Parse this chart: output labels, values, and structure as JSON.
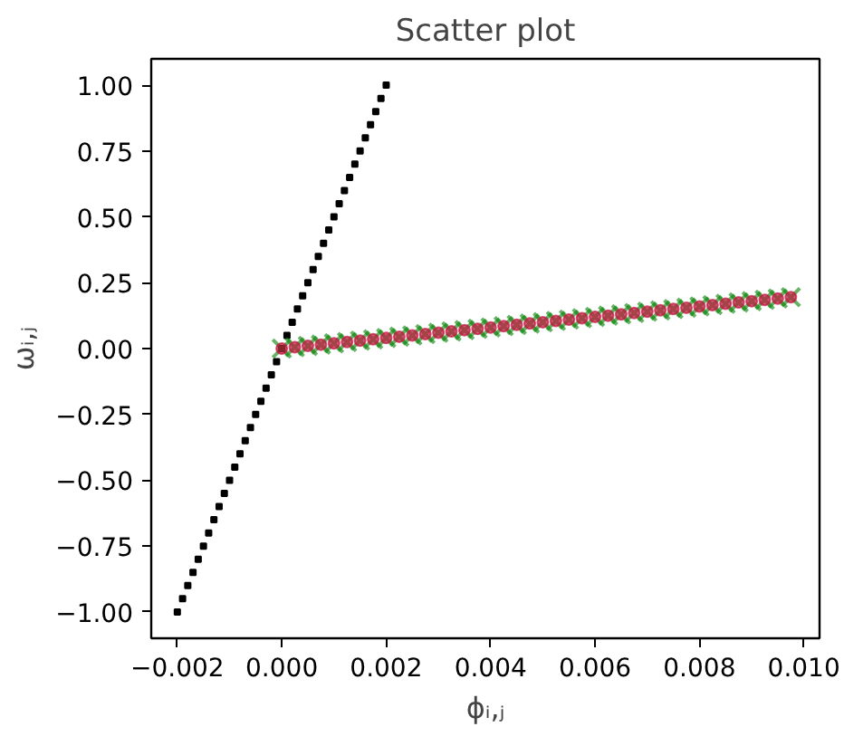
{
  "chart_data": {
    "type": "scatter",
    "title": "Scatter plot",
    "xlabel": "ϕᵢ,ⱼ",
    "ylabel": "ωᵢ,ⱼ",
    "xlim": [
      -0.0025,
      0.0103
    ],
    "ylim": [
      -1.1,
      1.1
    ],
    "xticks": [
      {
        "value": -0.002,
        "label": "−0.002"
      },
      {
        "value": 0,
        "label": "0.000"
      },
      {
        "value": 0.002,
        "label": "0.002"
      },
      {
        "value": 0.004,
        "label": "0.004"
      },
      {
        "value": 0.006,
        "label": "0.006"
      },
      {
        "value": 0.008,
        "label": "0.008"
      },
      {
        "value": 0.01,
        "label": "0.010"
      }
    ],
    "yticks": [
      {
        "value": -1,
        "label": "−1.00"
      },
      {
        "value": -0.75,
        "label": "−0.75"
      },
      {
        "value": -0.5,
        "label": "−0.50"
      },
      {
        "value": -0.25,
        "label": "−0.25"
      },
      {
        "value": 0,
        "label": "0.00"
      },
      {
        "value": 0.25,
        "label": "0.25"
      },
      {
        "value": 0.5,
        "label": "0.50"
      },
      {
        "value": 0.75,
        "label": "0.75"
      },
      {
        "value": 1,
        "label": "1.00"
      }
    ],
    "grid": false,
    "series": [
      {
        "color": "#000000",
        "marker": "square",
        "x": [
          -0.002,
          -0.0019,
          -0.0018,
          -0.0017,
          -0.0016,
          -0.0015,
          -0.0014,
          -0.0013,
          -0.0012,
          -0.0011,
          -0.001,
          -0.0009,
          -0.0008,
          -0.0007,
          -0.0006,
          -0.0005,
          -0.0004,
          -0.0003,
          -0.0002,
          -0.0001,
          0,
          0.0001,
          0.0002,
          0.0003,
          0.0004,
          0.0005,
          0.0006,
          0.0007,
          0.0008,
          0.0009,
          0.001,
          0.0011,
          0.0012,
          0.0013,
          0.0014,
          0.0015,
          0.0016,
          0.0017,
          0.0018,
          0.0019,
          0.002
        ],
        "values": [
          -1,
          -0.95,
          -0.9,
          -0.85,
          -0.8,
          -0.75,
          -0.7,
          -0.65,
          -0.6,
          -0.55,
          -0.5,
          -0.45,
          -0.4,
          -0.35,
          -0.3,
          -0.25,
          -0.2,
          -0.15,
          -0.1,
          -0.05,
          0,
          0.05,
          0.1,
          0.15,
          0.2,
          0.25,
          0.3,
          0.35,
          0.4,
          0.45,
          0.5,
          0.55,
          0.6,
          0.65,
          0.7,
          0.75,
          0.8,
          0.85,
          0.9,
          0.95,
          1
        ]
      },
      {
        "color": "#008000",
        "marker": "cross",
        "x": [
          0,
          0.00025,
          0.0005,
          0.00075,
          0.001,
          0.00125,
          0.0015,
          0.00175,
          0.002,
          0.00225,
          0.0025,
          0.00275,
          0.003,
          0.00325,
          0.0035,
          0.00375,
          0.004,
          0.00425,
          0.0045,
          0.00475,
          0.005,
          0.00525,
          0.0055,
          0.00575,
          0.006,
          0.00625,
          0.0065,
          0.00675,
          0.007,
          0.00725,
          0.0075,
          0.00775,
          0.008,
          0.00825,
          0.0085,
          0.00875,
          0.009,
          0.00925,
          0.0095,
          0.00975
        ],
        "values": [
          0,
          0.005,
          0.01,
          0.015,
          0.02,
          0.025,
          0.03,
          0.035,
          0.04,
          0.045,
          0.05,
          0.055,
          0.06,
          0.065,
          0.07,
          0.075,
          0.08,
          0.085,
          0.09,
          0.095,
          0.1,
          0.105,
          0.11,
          0.115,
          0.12,
          0.125,
          0.13,
          0.135,
          0.14,
          0.145,
          0.15,
          0.155,
          0.16,
          0.165,
          0.17,
          0.175,
          0.18,
          0.185,
          0.19,
          0.195
        ]
      },
      {
        "color": "#c0143c",
        "marker": "circle",
        "x": [
          0,
          0.00025,
          0.0005,
          0.00075,
          0.001,
          0.00125,
          0.0015,
          0.00175,
          0.002,
          0.00225,
          0.0025,
          0.00275,
          0.003,
          0.00325,
          0.0035,
          0.00375,
          0.004,
          0.00425,
          0.0045,
          0.00475,
          0.005,
          0.00525,
          0.0055,
          0.00575,
          0.006,
          0.00625,
          0.0065,
          0.00675,
          0.007,
          0.00725,
          0.0075,
          0.00775,
          0.008,
          0.00825,
          0.0085,
          0.00875,
          0.009,
          0.00925,
          0.0095,
          0.00975
        ],
        "values": [
          0,
          0.005,
          0.01,
          0.015,
          0.02,
          0.025,
          0.03,
          0.035,
          0.04,
          0.045,
          0.05,
          0.055,
          0.06,
          0.065,
          0.07,
          0.075,
          0.08,
          0.085,
          0.09,
          0.095,
          0.1,
          0.105,
          0.11,
          0.115,
          0.12,
          0.125,
          0.13,
          0.135,
          0.14,
          0.145,
          0.15,
          0.155,
          0.16,
          0.165,
          0.17,
          0.175,
          0.18,
          0.185,
          0.19,
          0.195
        ]
      }
    ]
  }
}
